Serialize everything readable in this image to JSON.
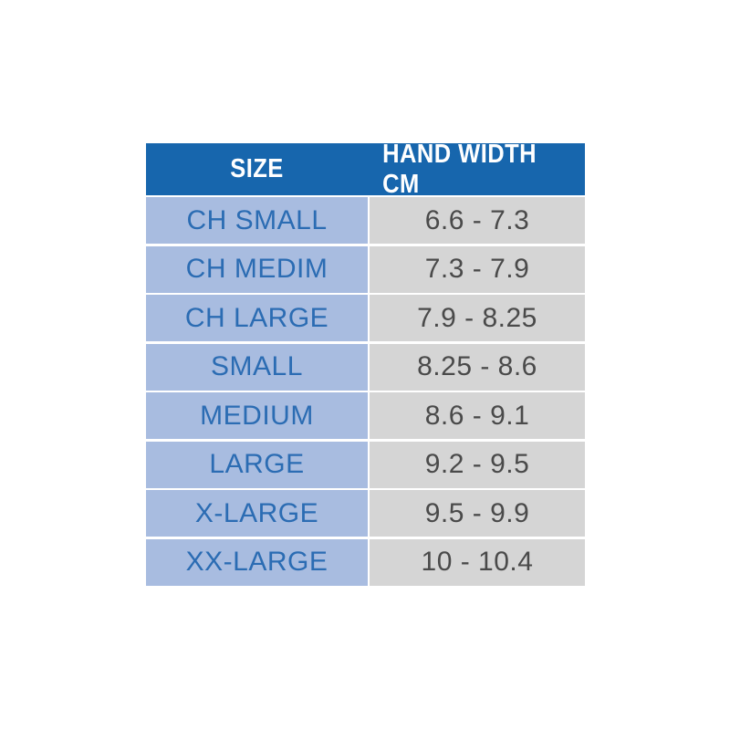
{
  "table": {
    "header": [
      "SIZE",
      "HAND WIDTH CM"
    ],
    "rows": [
      [
        "CH SMALL",
        "6.6 - 7.3"
      ],
      [
        "CH MEDIM",
        "7.3 - 7.9"
      ],
      [
        "CH LARGE",
        "7.9 - 8.25"
      ],
      [
        "SMALL",
        "8.25 - 8.6"
      ],
      [
        "MEDIUM",
        "8.6 - 9.1"
      ],
      [
        "LARGE",
        "9.2 - 9.5"
      ],
      [
        "X-LARGE",
        "9.5 - 9.9"
      ],
      [
        "XX-LARGE",
        "10 - 10.4"
      ]
    ]
  }
}
